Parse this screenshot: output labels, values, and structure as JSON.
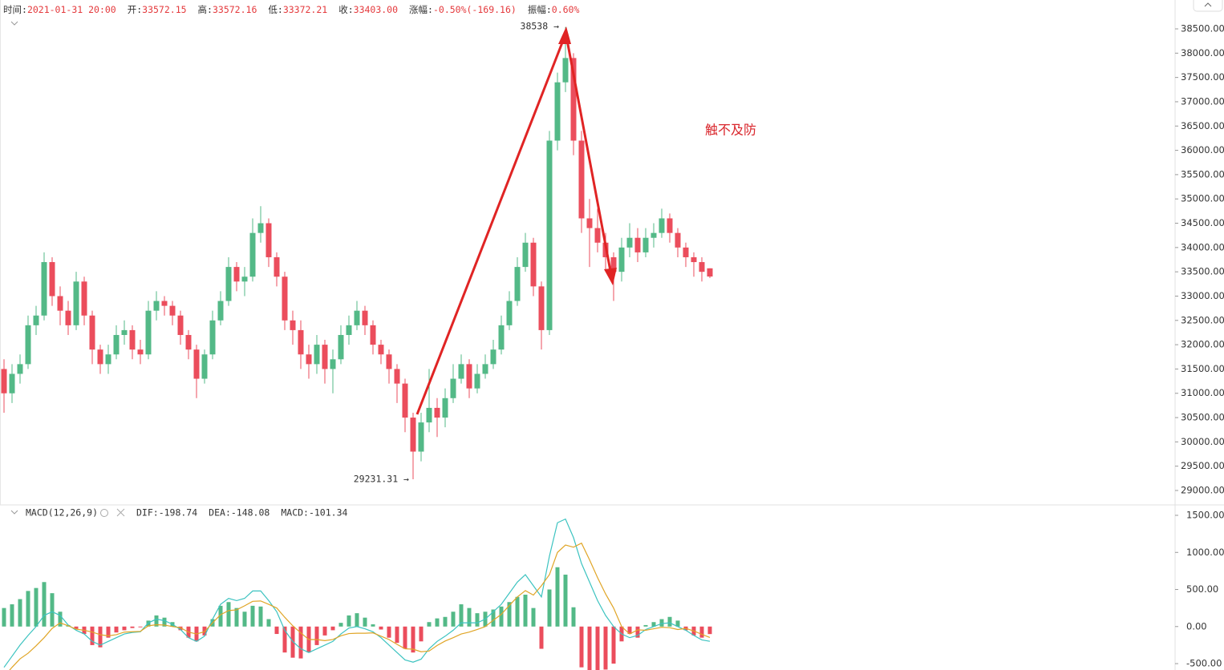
{
  "chart_data": [
    {
      "type": "candlestick",
      "info": [
        {
          "label": "时间:",
          "value": "2021-01-31 20:00"
        },
        {
          "label": "开:",
          "value": "33572.15"
        },
        {
          "label": "高:",
          "value": "33572.16"
        },
        {
          "label": "低:",
          "value": "33372.21"
        },
        {
          "label": "收:",
          "value": "33403.00"
        },
        {
          "label": "涨幅:",
          "value": "-0.50%(-169.16)"
        },
        {
          "label": "振幅:",
          "value": "0.60%"
        }
      ],
      "annotations": [
        "38538 →",
        "29231.31 →",
        "触不及防"
      ],
      "up_color": "#53b987",
      "down_color": "#eb4d5c",
      "open": [
        31500,
        31000,
        31400,
        31600,
        32400,
        32600,
        33700,
        33000,
        32700,
        32400,
        33300,
        32600,
        31900,
        31600,
        31800,
        32200,
        32300,
        31900,
        31800,
        32700,
        32900,
        32800,
        32600,
        32200,
        31900,
        31300,
        31800,
        32500,
        32900,
        33600,
        33300,
        33400,
        34300,
        34500,
        33800,
        33400,
        32500,
        32300,
        31800,
        31600,
        32000,
        31500,
        31700,
        32200,
        32400,
        32700,
        32400,
        32000,
        31800,
        31500,
        31200,
        30500,
        29800,
        30400,
        30700,
        30500,
        30900,
        31300,
        31600,
        31100,
        31400,
        31600,
        31900,
        32400,
        32900,
        33600,
        34100,
        33200,
        32300,
        36200,
        37400,
        37900,
        36200,
        34600,
        34400,
        34100,
        33800,
        33500,
        34000,
        34200,
        33900,
        34200,
        34300,
        34600,
        34300,
        34000,
        33800,
        33700,
        33572.15
      ],
      "high": [
        31700,
        31600,
        31800,
        32600,
        32800,
        33900,
        33800,
        33200,
        32900,
        33500,
        33400,
        32700,
        32000,
        32000,
        32400,
        32500,
        32400,
        32100,
        32900,
        33100,
        33000,
        32900,
        32700,
        32300,
        32000,
        31900,
        32700,
        33100,
        33800,
        33700,
        33600,
        34600,
        34850,
        34600,
        33900,
        33500,
        32700,
        32500,
        32000,
        32200,
        32100,
        31900,
        32400,
        32600,
        32900,
        32800,
        32500,
        32100,
        31900,
        31600,
        31300,
        30600,
        30600,
        31500,
        30900,
        31100,
        31600,
        31800,
        31700,
        31600,
        31800,
        32100,
        32600,
        33100,
        33800,
        34300,
        34200,
        33300,
        36400,
        37600,
        38538,
        38000,
        36400,
        35000,
        34800,
        34300,
        33900,
        34200,
        34500,
        34400,
        34400,
        34500,
        34800,
        34700,
        34400,
        34100,
        33900,
        33800,
        33572.16
      ],
      "low": [
        30600,
        30800,
        31200,
        31500,
        32200,
        32500,
        32800,
        32400,
        32200,
        32300,
        32400,
        31600,
        31400,
        31400,
        31700,
        32000,
        31700,
        31600,
        31700,
        32500,
        32600,
        32400,
        32000,
        31700,
        30900,
        31200,
        31700,
        32400,
        32800,
        33100,
        33000,
        33300,
        34100,
        33600,
        33200,
        32300,
        32000,
        31500,
        31300,
        31400,
        31200,
        31000,
        31600,
        32000,
        32300,
        32200,
        31800,
        31600,
        31200,
        30800,
        30200,
        29231.31,
        29600,
        30200,
        30100,
        30300,
        30800,
        31200,
        30900,
        31000,
        31300,
        31500,
        31800,
        32300,
        32800,
        33500,
        33000,
        31900,
        32200,
        36000,
        37200,
        35900,
        34300,
        33600,
        33900,
        33500,
        32900,
        33300,
        33800,
        33700,
        33800,
        34000,
        34200,
        34100,
        33800,
        33600,
        33400,
        33300,
        33372.21
      ],
      "close": [
        31000,
        31400,
        31600,
        32400,
        32600,
        33700,
        33000,
        32700,
        32400,
        33300,
        32600,
        31900,
        31600,
        31800,
        32200,
        32300,
        31900,
        31800,
        32700,
        32900,
        32800,
        32600,
        32200,
        31900,
        31300,
        31800,
        32500,
        32900,
        33600,
        33300,
        33400,
        34300,
        34500,
        33800,
        33400,
        32500,
        32300,
        31800,
        31600,
        32000,
        31500,
        31700,
        32200,
        32400,
        32700,
        32400,
        32000,
        31800,
        31500,
        31200,
        30500,
        29800,
        30400,
        30700,
        30500,
        30900,
        31300,
        31600,
        31100,
        31400,
        31600,
        31900,
        32400,
        32900,
        33600,
        34100,
        33200,
        32300,
        36200,
        37400,
        37900,
        36200,
        34600,
        34400,
        34100,
        33800,
        33500,
        34000,
        34200,
        33900,
        34200,
        34300,
        34600,
        34300,
        34000,
        33800,
        33700,
        33500,
        33403
      ],
      "ylim": [
        28703,
        39094
      ],
      "yticks": [
        {
          "value": 29000,
          "label": "29000.00"
        },
        {
          "value": 29500,
          "label": "29500.00"
        },
        {
          "value": 30000,
          "label": "30000.00"
        },
        {
          "value": 30500,
          "label": "30500.00"
        },
        {
          "value": 31000,
          "label": "31000.00"
        },
        {
          "value": 31500,
          "label": "31500.00"
        },
        {
          "value": 32000,
          "label": "32000.00"
        },
        {
          "value": 32500,
          "label": "32500.00"
        },
        {
          "value": 33000,
          "label": "33000.00"
        },
        {
          "value": 33500,
          "label": "33500.00"
        },
        {
          "value": 34000,
          "label": "34000.00"
        },
        {
          "value": 34500,
          "label": "34500.00"
        },
        {
          "value": 35000,
          "label": "35000.00"
        },
        {
          "value": 35500,
          "label": "35500.00"
        },
        {
          "value": 36000,
          "label": "36000.00"
        },
        {
          "value": 36500,
          "label": "36500.00"
        },
        {
          "value": 37000,
          "label": "37000.00"
        },
        {
          "value": 37500,
          "label": "37500.00"
        },
        {
          "value": 38000,
          "label": "38000.00"
        },
        {
          "value": 38500,
          "label": "38500.00"
        }
      ]
    },
    {
      "type": "macd",
      "title": "MACD(12,26,9)",
      "legend": [
        {
          "text": "DIF:-198.74",
          "color": "#3cc3c0"
        },
        {
          "text": "DEA:-148.08",
          "color": "#e0a526"
        },
        {
          "text": "MACD:-101.34",
          "color": "#eb4d5c"
        }
      ],
      "up_color": "#53b987",
      "down_color": "#eb4d5c",
      "histogram": [
        250,
        300,
        370,
        480,
        520,
        600,
        450,
        200,
        20,
        -30,
        -100,
        -250,
        -280,
        -150,
        -80,
        -50,
        -20,
        -10,
        80,
        150,
        120,
        60,
        -50,
        -150,
        -200,
        -120,
        100,
        280,
        330,
        250,
        200,
        280,
        270,
        100,
        -100,
        -350,
        -420,
        -430,
        -350,
        -250,
        -120,
        -50,
        50,
        150,
        180,
        120,
        30,
        -40,
        -150,
        -220,
        -300,
        -350,
        -200,
        60,
        110,
        130,
        200,
        300,
        250,
        180,
        200,
        230,
        270,
        330,
        400,
        430,
        250,
        -300,
        500,
        800,
        700,
        260,
        -550,
        -600,
        -620,
        -580,
        -500,
        -200,
        -100,
        -150,
        20,
        60,
        100,
        130,
        80,
        -50,
        -120,
        -150,
        -101.34
      ],
      "series": [
        {
          "name": "DIF",
          "color": "#3cc3c0",
          "values": [
            -550,
            -400,
            -250,
            -120,
            0,
            150,
            200,
            150,
            20,
            -50,
            -100,
            -200,
            -250,
            -200,
            -150,
            -100,
            -80,
            -70,
            50,
            100,
            80,
            30,
            -40,
            -150,
            -200,
            -130,
            100,
            300,
            380,
            350,
            380,
            480,
            480,
            350,
            200,
            -50,
            -200,
            -300,
            -350,
            -300,
            -250,
            -200,
            -100,
            -20,
            0,
            -30,
            -70,
            -150,
            -250,
            -350,
            -450,
            -480,
            -440,
            -300,
            -200,
            -130,
            -50,
            50,
            50,
            50,
            100,
            200,
            300,
            450,
            600,
            700,
            550,
            400,
            950,
            1400,
            1450,
            1200,
            850,
            600,
            350,
            150,
            0,
            -100,
            -150,
            -120,
            -40,
            0,
            40,
            50,
            0,
            -50,
            -120,
            -180,
            -198.74
          ]
        },
        {
          "name": "DEA",
          "color": "#e0a526",
          "values": [
            -675,
            -550,
            -435,
            -360,
            -260,
            -150,
            -25,
            50,
            10,
            -35,
            -50,
            -75,
            -110,
            -125,
            -110,
            -75,
            -70,
            -65,
            10,
            25,
            20,
            0,
            -15,
            -75,
            -100,
            -70,
            50,
            160,
            215,
            225,
            280,
            340,
            345,
            300,
            250,
            125,
            10,
            -85,
            -175,
            -175,
            -190,
            -175,
            -125,
            -95,
            -90,
            -90,
            -85,
            -130,
            -175,
            -240,
            -300,
            -305,
            -340,
            -330,
            -255,
            -195,
            -150,
            -100,
            -75,
            -40,
            0,
            85,
            165,
            285,
            400,
            485,
            425,
            550,
            700,
            1000,
            1100,
            1070,
            1125,
            900,
            660,
            440,
            250,
            0,
            -100,
            -45,
            -50,
            -30,
            -10,
            -15,
            -40,
            -25,
            -60,
            -105,
            -148.08
          ]
        }
      ],
      "ylim": [
        -586,
        1619
      ],
      "yticks": [
        {
          "value": -500,
          "label": "-500.00"
        },
        {
          "value": 0,
          "label": "0.00"
        },
        {
          "value": 500,
          "label": "500.00"
        },
        {
          "value": 1000,
          "label": "1000.00"
        },
        {
          "value": 1500,
          "label": "1500.00"
        }
      ]
    }
  ]
}
